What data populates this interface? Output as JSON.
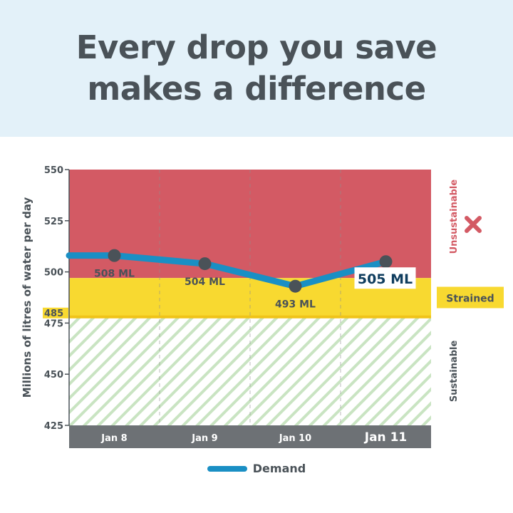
{
  "header": {
    "title_line1": "Every drop you save",
    "title_line2": "makes a difference"
  },
  "chart_data": {
    "type": "line",
    "ylabel": "Millions of litres of water per day",
    "ylim": [
      425,
      550
    ],
    "yticks": [
      "550",
      "525",
      "500",
      "475",
      "450",
      "425"
    ],
    "threshold_label": "485",
    "categories": [
      "Jan 8",
      "Jan 9",
      "Jan 10",
      "Jan 11"
    ],
    "series": [
      {
        "name": "Demand",
        "color": "#1a8fc4",
        "values": [
          508,
          504,
          493,
          505
        ],
        "labels": [
          "508 ML",
          "504 ML",
          "493 ML",
          "505 ML"
        ]
      }
    ],
    "zones": [
      {
        "label": "Unsustainable",
        "color": "#d35a64",
        "range": [
          497,
          550
        ]
      },
      {
        "label": "Strained",
        "color": "#f8d930",
        "range": [
          478,
          497
        ]
      },
      {
        "label": "Sustainable",
        "color": "#c9e4c2",
        "range": [
          425,
          478
        ]
      }
    ],
    "highlighted_category": "Jan 11",
    "grid": "vertical dashed",
    "legend": "bottom-center"
  },
  "icons": {
    "unsustainable": "x-icon"
  }
}
